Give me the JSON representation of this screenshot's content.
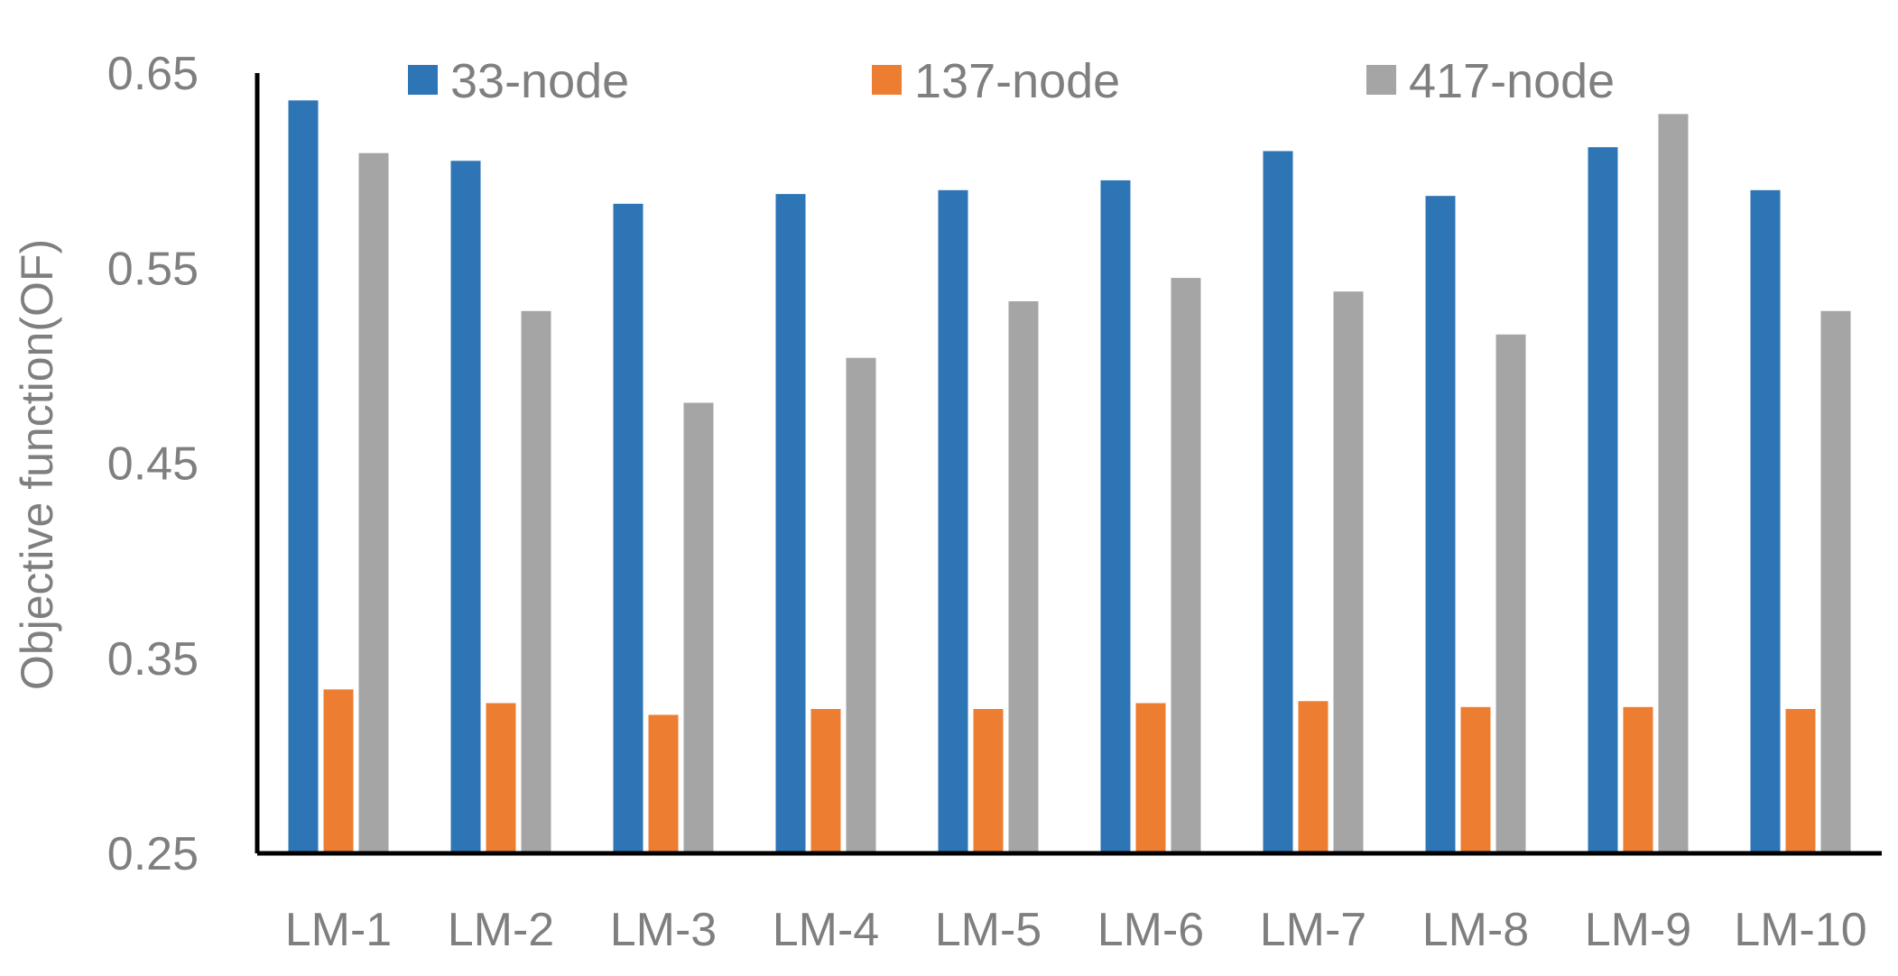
{
  "chart_data": {
    "type": "bar",
    "title": "",
    "xlabel": "",
    "ylabel": "Objective function(OF)",
    "ylim": [
      0.25,
      0.65
    ],
    "yticks": [
      "0.25",
      "0.35",
      "0.45",
      "0.55",
      "0.65"
    ],
    "grid": false,
    "legend_position": "top",
    "categories": [
      "LM-1",
      "LM-2",
      "LM-3",
      "LM-4",
      "LM-5",
      "LM-6",
      "LM-7",
      "LM-8",
      "LM-9",
      "LM-10"
    ],
    "series": [
      {
        "name": "33-node",
        "color": "#2e75b6",
        "values": [
          0.636,
          0.605,
          0.583,
          0.588,
          0.59,
          0.595,
          0.61,
          0.587,
          0.612,
          0.59
        ]
      },
      {
        "name": "137-node",
        "color": "#ed7d31",
        "values": [
          0.334,
          0.327,
          0.321,
          0.324,
          0.324,
          0.327,
          0.328,
          0.325,
          0.325,
          0.324
        ]
      },
      {
        "name": "417-node",
        "color": "#a5a5a5",
        "values": [
          0.609,
          0.528,
          0.481,
          0.504,
          0.533,
          0.545,
          0.538,
          0.516,
          0.629,
          0.528
        ]
      }
    ]
  }
}
